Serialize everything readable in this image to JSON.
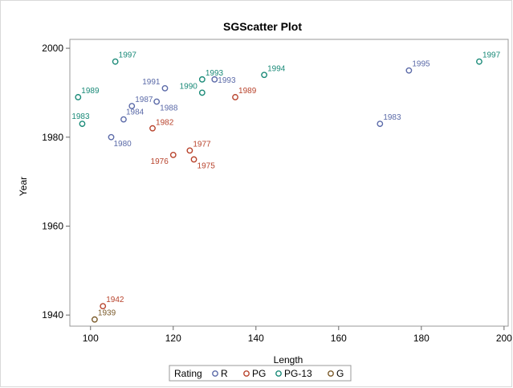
{
  "chart_data": {
    "type": "scatter",
    "title": "SGScatter Plot",
    "xlabel": "Length",
    "ylabel": "Year",
    "xlim": [
      95,
      201
    ],
    "ylim": [
      1937.5,
      2002
    ],
    "x_ticks": [
      "100",
      "120",
      "140",
      "160",
      "180",
      "200"
    ],
    "y_ticks": [
      "1940",
      "1960",
      "1980",
      "2000"
    ],
    "grid": false,
    "legend": {
      "title": "Rating",
      "placement": "bottom-center"
    },
    "series": [
      {
        "name": "R",
        "color": "#5b6aa8",
        "points": [
          {
            "x": 105,
            "y": 1980,
            "label": "1980"
          },
          {
            "x": 108,
            "y": 1984,
            "label": "1984"
          },
          {
            "x": 110,
            "y": 1987,
            "label": "1987"
          },
          {
            "x": 116,
            "y": 1988,
            "label": "1988"
          },
          {
            "x": 118,
            "y": 1991,
            "label": "1991"
          },
          {
            "x": 130,
            "y": 1993,
            "label": "1993"
          },
          {
            "x": 170,
            "y": 1983,
            "label": "1983"
          },
          {
            "x": 177,
            "y": 1995,
            "label": "1995"
          }
        ]
      },
      {
        "name": "PG",
        "color": "#b8432c",
        "points": [
          {
            "x": 103,
            "y": 1942,
            "label": "1942"
          },
          {
            "x": 115,
            "y": 1982,
            "label": "1982"
          },
          {
            "x": 120,
            "y": 1976,
            "label": "1976"
          },
          {
            "x": 124,
            "y": 1977,
            "label": "1977"
          },
          {
            "x": 125,
            "y": 1975,
            "label": "1975"
          },
          {
            "x": 135,
            "y": 1989,
            "label": "1989"
          }
        ]
      },
      {
        "name": "PG-13",
        "color": "#1a8a78",
        "points": [
          {
            "x": 97,
            "y": 1989,
            "label": "1989"
          },
          {
            "x": 98,
            "y": 1983,
            "label": "1983"
          },
          {
            "x": 106,
            "y": 1997,
            "label": "1997"
          },
          {
            "x": 127,
            "y": 1990,
            "label": "1990"
          },
          {
            "x": 127,
            "y": 1993,
            "label": "1993"
          },
          {
            "x": 142,
            "y": 1994,
            "label": "1994"
          },
          {
            "x": 194,
            "y": 1997,
            "label": "1997"
          }
        ]
      },
      {
        "name": "G",
        "color": "#7a5a2a",
        "points": [
          {
            "x": 101,
            "y": 1939,
            "label": "1939"
          }
        ]
      }
    ]
  }
}
